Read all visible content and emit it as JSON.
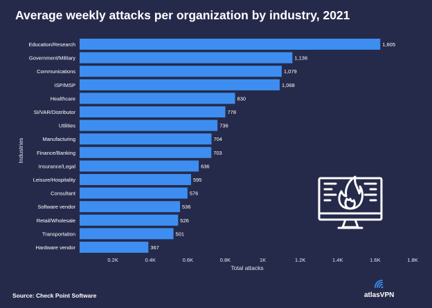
{
  "title": "Average weekly attacks per organization by industry, 2021",
  "source": "Source: Check Point Software",
  "brand": {
    "name": "atlasVPN",
    "icon": "atlas-vpn-wifi-icon"
  },
  "illustration": {
    "icon": "computer-on-fire-icon"
  },
  "colors": {
    "background": "#262a4a",
    "bar": "#3d8ef0",
    "text": "#ffffff",
    "axis_text": "#e4e6f2"
  },
  "chart_data": {
    "type": "bar",
    "orientation": "horizontal",
    "title": "Average weekly attacks per organization by industry, 2021",
    "xlabel": "Total attacks",
    "ylabel": "Industries",
    "xlim": [
      0,
      1800
    ],
    "ticks": [
      {
        "value": 200,
        "label": "0.2K"
      },
      {
        "value": 400,
        "label": "0.4K"
      },
      {
        "value": 600,
        "label": "0.6K"
      },
      {
        "value": 800,
        "label": "0.8K"
      },
      {
        "value": 1000,
        "label": "1K"
      },
      {
        "value": 1200,
        "label": "1.2K"
      },
      {
        "value": 1400,
        "label": "1.4K"
      },
      {
        "value": 1600,
        "label": "1.6K"
      },
      {
        "value": 1800,
        "label": "1.8K"
      }
    ],
    "grid": false,
    "categories": [
      "Education/Research",
      "Government/Military",
      "Communications",
      "ISP/MSP",
      "Healthcare",
      "SI/VAR/Distributor",
      "Utilities",
      "Manufacturing",
      "Finance/Banking",
      "Insurance/Legal",
      "Leisure/Hospitality",
      "Consultant",
      "Software vendor",
      "Retail/Wholesale",
      "Transportation",
      "Hardware vendor"
    ],
    "values": [
      1605,
      1136,
      1079,
      1068,
      830,
      778,
      736,
      704,
      703,
      636,
      595,
      576,
      536,
      526,
      501,
      367
    ],
    "value_labels": [
      "1,605",
      "1,136",
      "1,079",
      "1,068",
      "830",
      "778",
      "736",
      "704",
      "703",
      "636",
      "595",
      "576",
      "536",
      "526",
      "501",
      "367"
    ]
  }
}
